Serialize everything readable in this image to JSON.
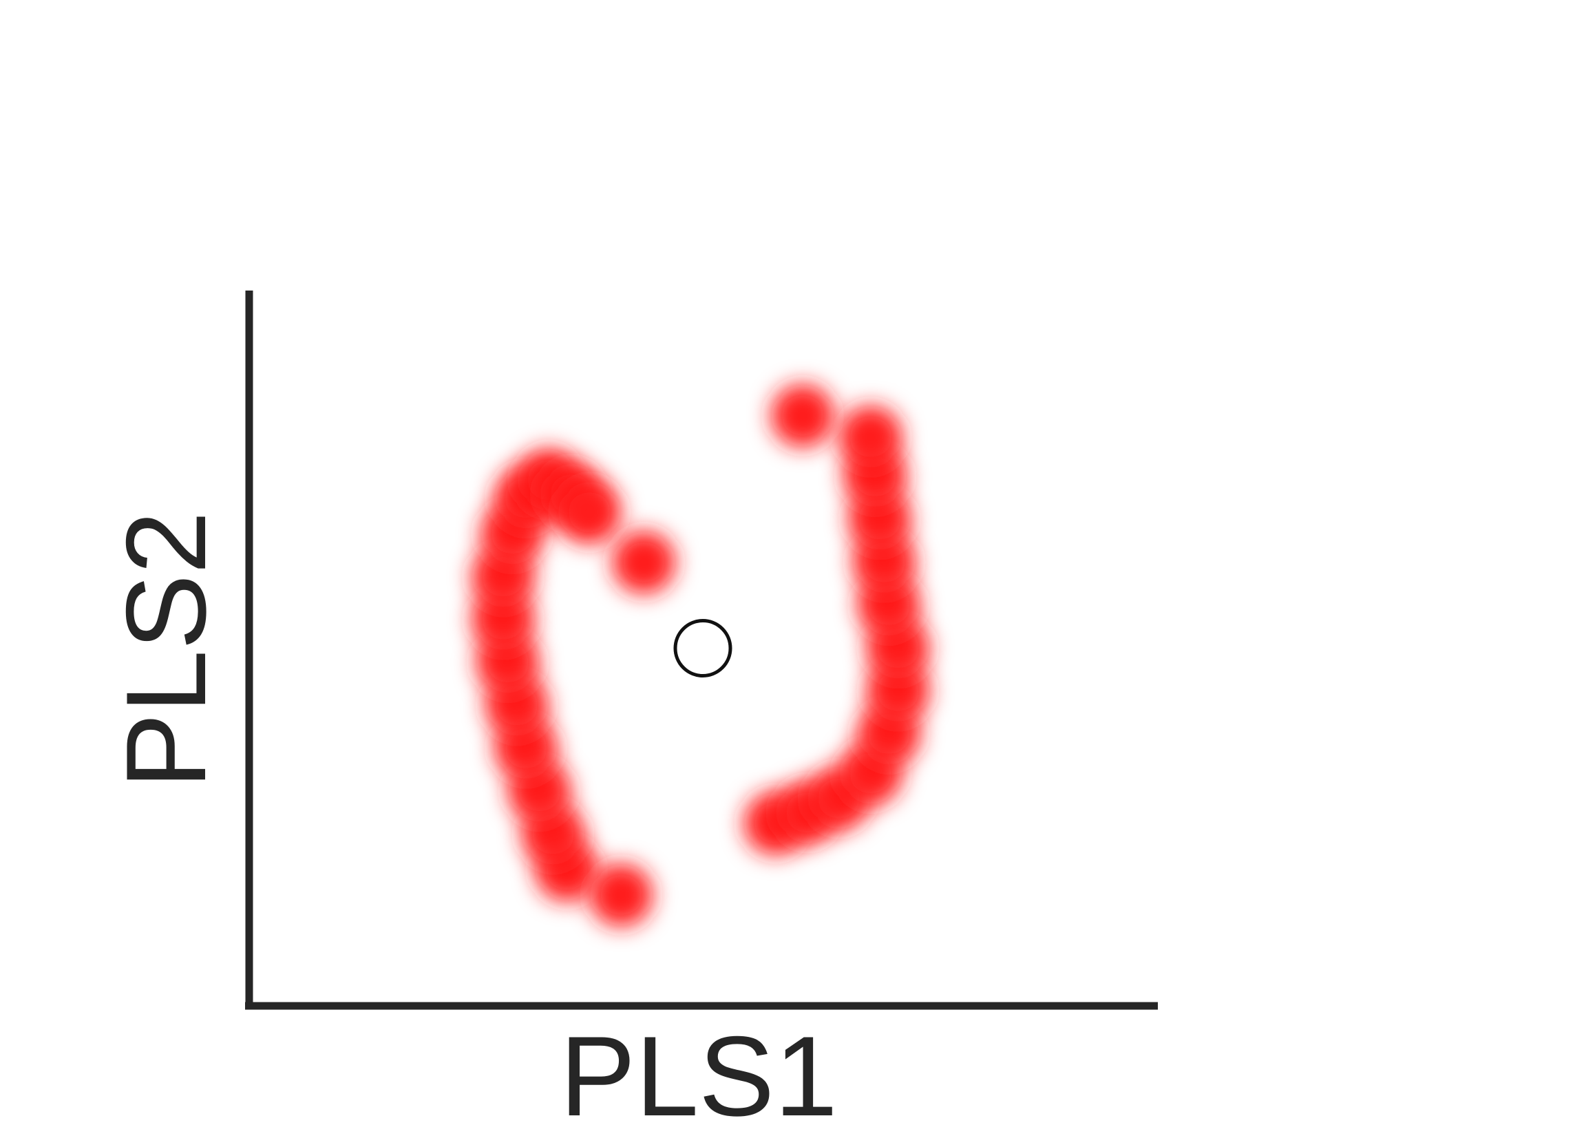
{
  "chart_data": {
    "type": "scatter",
    "title": "",
    "xlabel": "PLS1",
    "ylabel": "PLS2",
    "xlim": [
      -1.0,
      1.0
    ],
    "ylim": [
      -1.0,
      1.0
    ],
    "grid": false,
    "legend": "none",
    "axes": {
      "visible_spines": [
        "left",
        "bottom"
      ],
      "tick_labels": false
    },
    "colors": {
      "points": "#ff1a1a",
      "axis": "#262626",
      "center_marker_edge": "#111111"
    },
    "series": [
      {
        "points": [
          [
            -0.3,
            -0.62
          ],
          [
            -0.33,
            -0.52
          ],
          [
            -0.36,
            -0.4
          ],
          [
            -0.39,
            -0.28
          ],
          [
            -0.41,
            -0.16
          ],
          [
            -0.43,
            -0.04
          ],
          [
            -0.44,
            0.08
          ],
          [
            -0.44,
            0.2
          ],
          [
            -0.42,
            0.32
          ],
          [
            -0.39,
            0.42
          ],
          [
            -0.34,
            0.47
          ],
          [
            -0.29,
            0.43
          ],
          [
            -0.25,
            0.38
          ],
          [
            -0.13,
            0.24
          ],
          [
            -0.18,
            -0.69
          ],
          [
            0.16,
            -0.49
          ],
          [
            0.23,
            -0.46
          ],
          [
            0.3,
            -0.42
          ],
          [
            0.37,
            -0.35
          ],
          [
            0.41,
            -0.24
          ],
          [
            0.43,
            -0.12
          ],
          [
            0.43,
            0.0
          ],
          [
            0.41,
            0.12
          ],
          [
            0.4,
            0.24
          ],
          [
            0.39,
            0.36
          ],
          [
            0.38,
            0.48
          ],
          [
            0.37,
            0.59
          ],
          [
            0.22,
            0.65
          ]
        ]
      },
      {
        "marker": "open-circle",
        "points": [
          [
            0.0,
            0.0
          ]
        ]
      }
    ]
  }
}
